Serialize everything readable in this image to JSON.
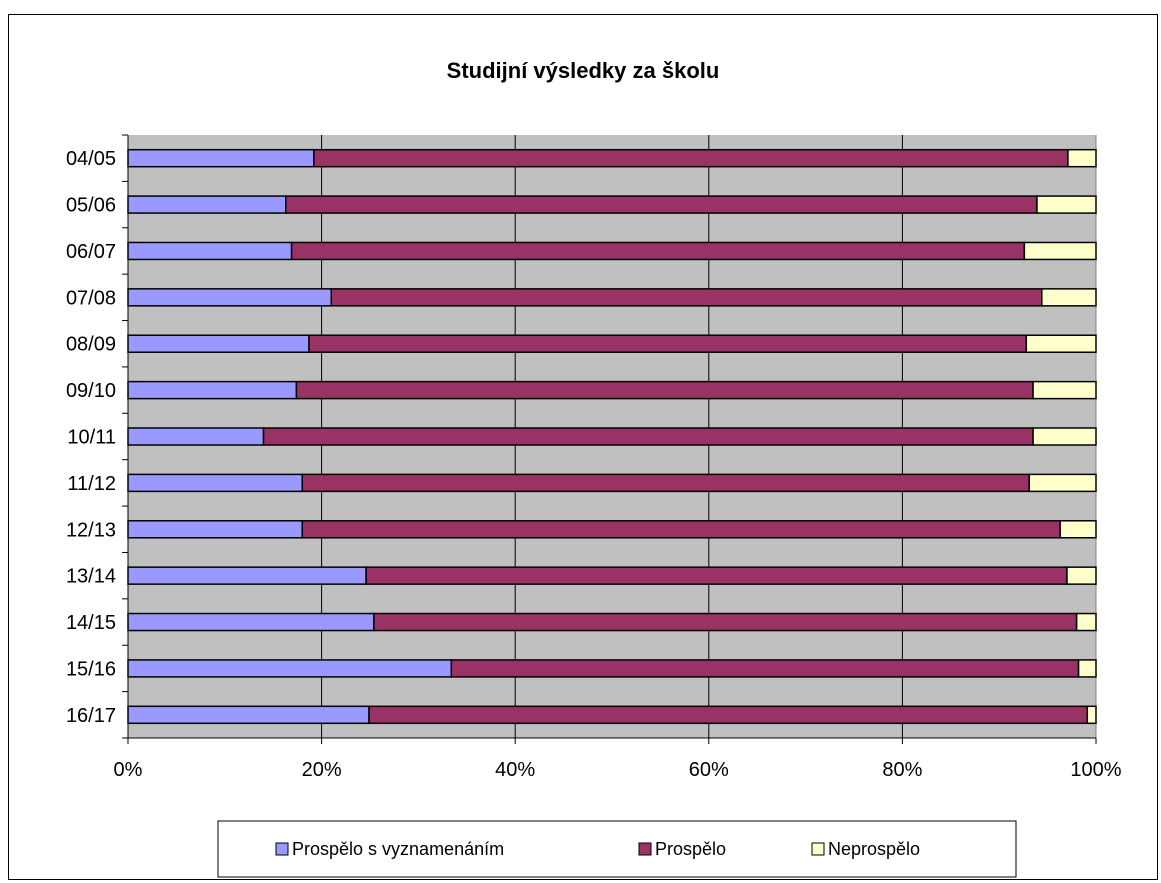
{
  "chart_data": {
    "type": "bar",
    "orientation": "horizontal",
    "stacked": "percent",
    "title": "Studijní výsledky za školu",
    "xlabel": "",
    "ylabel": "",
    "categories": [
      "04/05",
      "05/06",
      "06/07",
      "07/08",
      "08/09",
      "09/10",
      "10/11",
      "11/12",
      "12/13",
      "13/14",
      "14/15",
      "15/16",
      "16/17"
    ],
    "series": [
      {
        "name": "Prospělo s vyznamenáním",
        "color": "#9999ff",
        "values": [
          19.2,
          16.3,
          16.9,
          21.0,
          18.7,
          17.4,
          14.0,
          18.0,
          18.0,
          24.6,
          25.4,
          33.4,
          24.9
        ]
      },
      {
        "name": "Prospělo",
        "color": "#993366",
        "values": [
          77.9,
          77.6,
          75.7,
          73.4,
          74.1,
          76.1,
          79.5,
          75.1,
          78.3,
          72.4,
          72.6,
          64.8,
          74.2
        ]
      },
      {
        "name": "Neprospělo",
        "color": "#ffffcc",
        "values": [
          2.9,
          6.1,
          7.4,
          5.6,
          7.2,
          6.5,
          6.5,
          6.9,
          3.7,
          3.0,
          2.0,
          1.8,
          0.9
        ]
      }
    ],
    "xlim": [
      0,
      100
    ],
    "xticks": [
      "0%",
      "20%",
      "40%",
      "60%",
      "80%",
      "100%"
    ],
    "grid": true,
    "plot_background": "#c0c0c0",
    "legend": {
      "position": "bottom"
    }
  }
}
